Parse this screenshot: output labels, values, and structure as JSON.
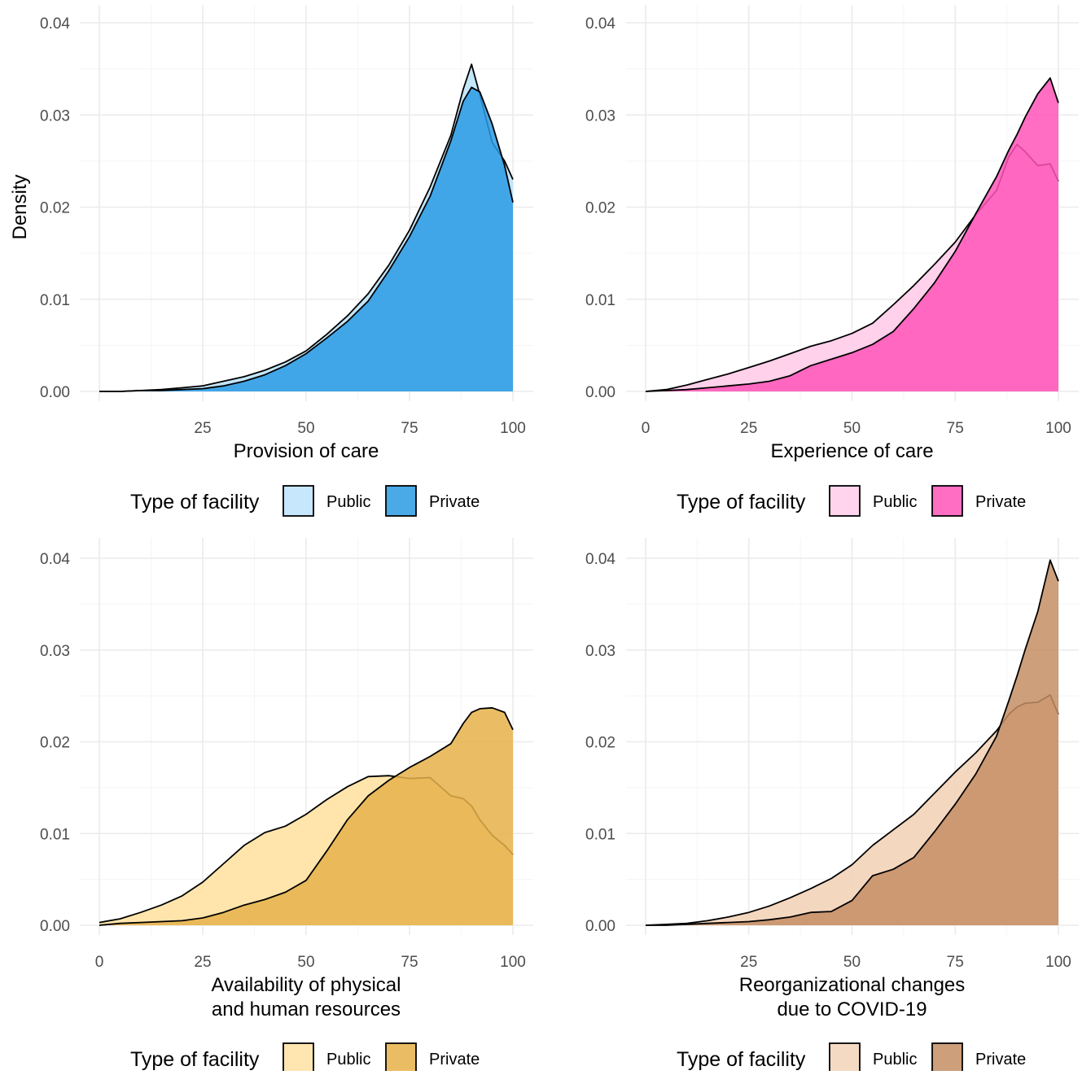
{
  "chart_data": [
    {
      "type": "area",
      "xlabel": "Provision of care",
      "ylabel": "Density",
      "xlim": [
        0,
        100
      ],
      "ylim": [
        0,
        0.04
      ],
      "xticks": [
        "25",
        "50",
        "75",
        "100"
      ],
      "yticks": [
        "0.00",
        "0.01",
        "0.02",
        "0.03",
        "0.04"
      ],
      "grid": true,
      "legend_position": "bottom",
      "legend_title": "Type of facility",
      "series": [
        {
          "name": "Public",
          "color": "#bde3fb",
          "x": [
            0,
            5,
            10,
            15,
            20,
            25,
            30,
            35,
            40,
            45,
            50,
            55,
            60,
            65,
            70,
            75,
            80,
            85,
            88,
            90,
            92,
            95,
            98,
            100
          ],
          "values": [
            0.0,
            0.0,
            0.0001,
            0.0002,
            0.0004,
            0.0006,
            0.0011,
            0.0016,
            0.0023,
            0.0032,
            0.0044,
            0.0062,
            0.0082,
            0.0106,
            0.0137,
            0.0175,
            0.0222,
            0.0278,
            0.0328,
            0.0355,
            0.0322,
            0.027,
            0.025,
            0.023
          ]
        },
        {
          "name": "Private",
          "color": "#2a9ae3",
          "x": [
            0,
            5,
            10,
            15,
            20,
            25,
            30,
            35,
            40,
            45,
            50,
            55,
            60,
            65,
            70,
            75,
            80,
            85,
            88,
            90,
            92,
            95,
            98,
            100
          ],
          "values": [
            0.0,
            0.0,
            0.0001,
            0.0001,
            0.0002,
            0.0003,
            0.0006,
            0.0011,
            0.0018,
            0.0028,
            0.0041,
            0.0058,
            0.0076,
            0.0098,
            0.0131,
            0.0168,
            0.0212,
            0.0272,
            0.0315,
            0.033,
            0.0325,
            0.029,
            0.0245,
            0.0205
          ]
        }
      ]
    },
    {
      "type": "area",
      "xlabel": "Experience of care",
      "ylabel": "",
      "xlim": [
        0,
        100
      ],
      "ylim": [
        0,
        0.04
      ],
      "xticks": [
        "0",
        "25",
        "50",
        "75",
        "100"
      ],
      "yticks": [
        "0.00",
        "0.01",
        "0.02",
        "0.03",
        "0.04"
      ],
      "grid": true,
      "legend_position": "bottom",
      "legend_title": "Type of facility",
      "series": [
        {
          "name": "Public",
          "color": "#ffcce9",
          "x": [
            0,
            5,
            10,
            15,
            20,
            25,
            30,
            35,
            40,
            45,
            50,
            55,
            60,
            65,
            70,
            75,
            80,
            85,
            88,
            90,
            92,
            95,
            98,
            100
          ],
          "values": [
            0.0,
            0.0002,
            0.0007,
            0.0013,
            0.0019,
            0.0026,
            0.0033,
            0.0041,
            0.0049,
            0.0055,
            0.0063,
            0.0074,
            0.0094,
            0.0115,
            0.0138,
            0.0162,
            0.0192,
            0.0218,
            0.0255,
            0.0268,
            0.026,
            0.0245,
            0.0247,
            0.0228
          ]
        },
        {
          "name": "Private",
          "color": "#ff55b8",
          "x": [
            0,
            5,
            10,
            15,
            20,
            25,
            30,
            35,
            40,
            45,
            50,
            55,
            60,
            65,
            70,
            75,
            80,
            85,
            88,
            90,
            92,
            95,
            98,
            100
          ],
          "values": [
            0.0,
            0.0001,
            0.0002,
            0.0004,
            0.0006,
            0.0008,
            0.0011,
            0.0017,
            0.0028,
            0.0035,
            0.0042,
            0.0051,
            0.0065,
            0.009,
            0.0118,
            0.0152,
            0.0193,
            0.0233,
            0.0262,
            0.0279,
            0.0298,
            0.0323,
            0.034,
            0.0313
          ]
        }
      ]
    },
    {
      "type": "area",
      "xlabel": "Availability of physical\nand human resources",
      "ylabel": "",
      "xlim": [
        0,
        100
      ],
      "ylim": [
        0,
        0.04
      ],
      "xticks": [
        "0",
        "25",
        "50",
        "75",
        "100"
      ],
      "yticks": [
        "0.00",
        "0.01",
        "0.02",
        "0.03",
        "0.04"
      ],
      "grid": true,
      "legend_position": "bottom",
      "legend_title": "Type of facility",
      "series": [
        {
          "name": "Public",
          "color": "#ffe2a3",
          "x": [
            0,
            5,
            10,
            15,
            20,
            25,
            30,
            35,
            40,
            45,
            50,
            55,
            60,
            65,
            70,
            75,
            80,
            85,
            88,
            90,
            92,
            95,
            98,
            100
          ],
          "values": [
            0.0003,
            0.0007,
            0.0014,
            0.0022,
            0.0032,
            0.0047,
            0.0067,
            0.0087,
            0.0101,
            0.0108,
            0.0121,
            0.0137,
            0.0151,
            0.0162,
            0.0163,
            0.016,
            0.0161,
            0.0141,
            0.0138,
            0.013,
            0.0115,
            0.0098,
            0.0087,
            0.0077
          ]
        },
        {
          "name": "Private",
          "color": "#e6b24a",
          "x": [
            0,
            5,
            10,
            15,
            20,
            25,
            30,
            35,
            40,
            45,
            50,
            55,
            60,
            65,
            70,
            75,
            80,
            85,
            88,
            90,
            92,
            95,
            98,
            100
          ],
          "values": [
            0.0,
            0.0002,
            0.0003,
            0.0004,
            0.0005,
            0.0008,
            0.0014,
            0.0022,
            0.0028,
            0.0036,
            0.0049,
            0.0081,
            0.0115,
            0.0141,
            0.0158,
            0.0172,
            0.0184,
            0.0198,
            0.022,
            0.0232,
            0.0236,
            0.0237,
            0.0232,
            0.0213
          ]
        }
      ]
    },
    {
      "type": "area",
      "xlabel": "Reorganizational changes\ndue to COVID-19",
      "ylabel": "",
      "xlim": [
        0,
        100
      ],
      "ylim": [
        0,
        0.04
      ],
      "xticks": [
        "25",
        "50",
        "75",
        "100"
      ],
      "yticks": [
        "0.00",
        "0.01",
        "0.02",
        "0.03",
        "0.04"
      ],
      "grid": true,
      "legend_position": "bottom",
      "legend_title": "Type of facility",
      "series": [
        {
          "name": "Public",
          "color": "#f3d3b8",
          "x": [
            0,
            5,
            10,
            15,
            20,
            25,
            30,
            35,
            40,
            45,
            50,
            55,
            60,
            65,
            70,
            75,
            80,
            85,
            88,
            90,
            92,
            95,
            98,
            100
          ],
          "values": [
            0.0,
            0.0001,
            0.0002,
            0.0005,
            0.0009,
            0.0014,
            0.0021,
            0.003,
            0.004,
            0.0051,
            0.0066,
            0.0087,
            0.0104,
            0.0121,
            0.0144,
            0.0167,
            0.0188,
            0.0212,
            0.023,
            0.0238,
            0.0242,
            0.0243,
            0.0251,
            0.023
          ]
        },
        {
          "name": "Private",
          "color": "#c48e64",
          "x": [
            0,
            5,
            10,
            15,
            20,
            25,
            30,
            35,
            40,
            45,
            50,
            55,
            60,
            65,
            70,
            75,
            80,
            85,
            88,
            90,
            92,
            95,
            98,
            100
          ],
          "values": [
            0.0,
            0.0,
            0.0001,
            0.0002,
            0.0003,
            0.0004,
            0.0006,
            0.0009,
            0.0014,
            0.0015,
            0.0027,
            0.0054,
            0.0061,
            0.0074,
            0.0102,
            0.0132,
            0.0165,
            0.0206,
            0.0245,
            0.0272,
            0.0301,
            0.0342,
            0.0398,
            0.0375
          ]
        }
      ]
    }
  ]
}
